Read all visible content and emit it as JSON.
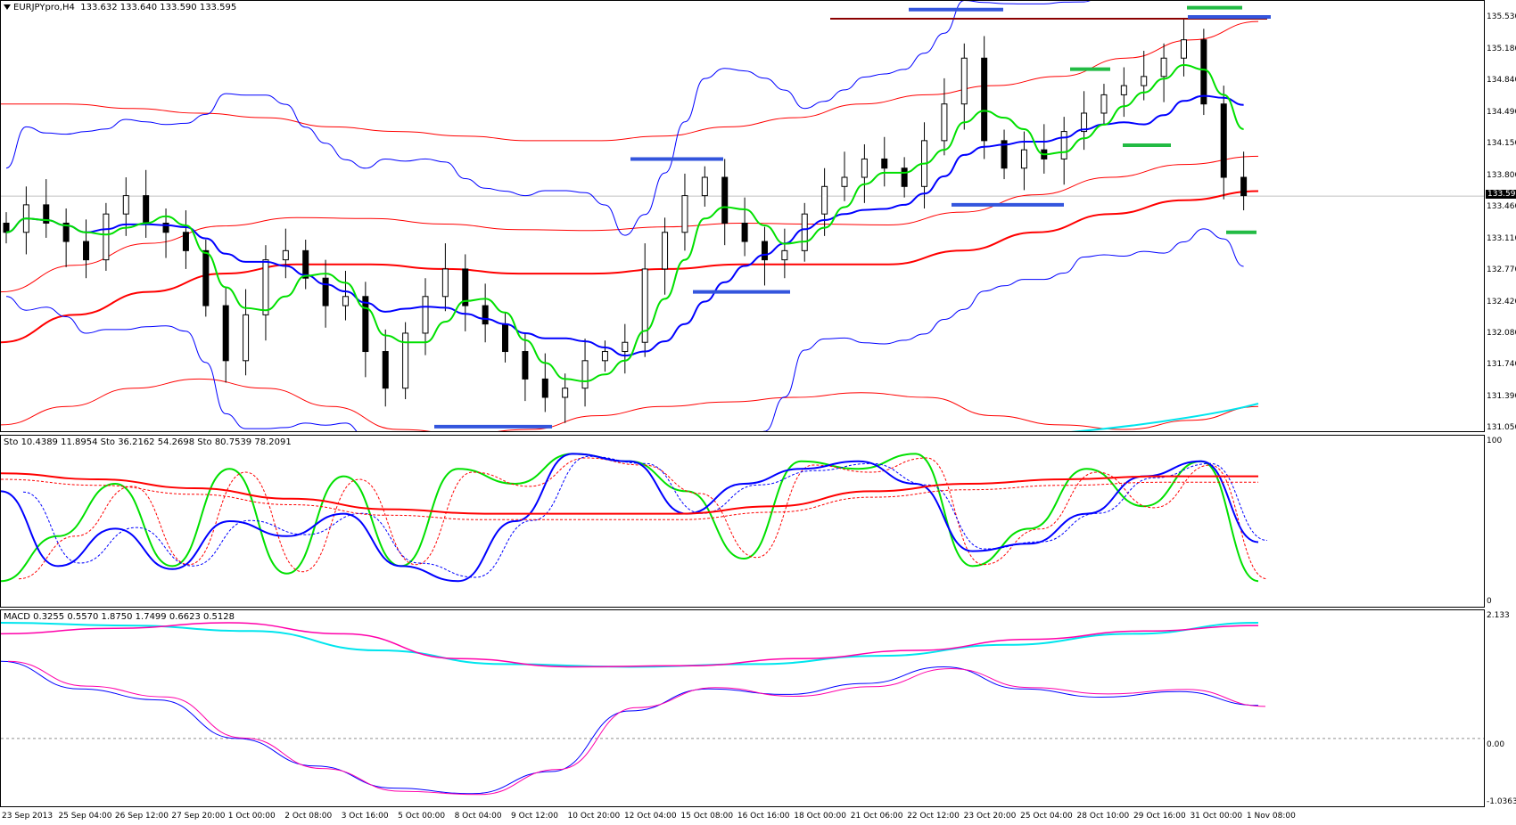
{
  "main": {
    "symbol": "EURJPYpro,H4",
    "ohlc": "133.632 133.640 133.590 133.595",
    "current_price": "133.595",
    "price_axis": [
      "135.530",
      "135.180",
      "134.840",
      "134.490",
      "134.150",
      "133.800",
      "133.460",
      "133.110",
      "132.770",
      "132.420",
      "132.080",
      "131.740",
      "131.390",
      "131.050"
    ]
  },
  "sto": {
    "title": "Sto 10.4389 11.8954  Sto 36.2162 54.2698  Sto 80.7539 78.2091",
    "axis": [
      "100",
      "0"
    ]
  },
  "macd": {
    "title": "MACD 0.3255 0.5570 1.8750 1.7499 0.6623 0.5128",
    "axis": [
      "2.133",
      "0.00",
      "-1.0363"
    ]
  },
  "time_axis": [
    "23 Sep 2013",
    "25 Sep 04:00",
    "26 Sep 12:00",
    "27 Sep 20:00",
    "1 Oct 00:00",
    "2 Oct 08:00",
    "3 Oct 16:00",
    "5 Oct 00:00",
    "8 Oct 04:00",
    "9 Oct 12:00",
    "10 Oct 20:00",
    "12 Oct 04:00",
    "15 Oct 08:00",
    "16 Oct 16:00",
    "18 Oct 00:00",
    "21 Oct 06:00",
    "22 Oct 12:00",
    "23 Oct 20:00",
    "25 Oct 04:00",
    "28 Oct 10:00",
    "29 Oct 16:00",
    "31 Oct 00:00",
    "1 Nov 08:00"
  ],
  "colors": {
    "blue": "#0000ff",
    "red": "#ff0000",
    "green": "#00e000",
    "darkred": "#8b0000",
    "cyan": "#00e5ee",
    "magenta": "#ff00aa",
    "levels": "#3355dd",
    "support": "#22bb44"
  },
  "icons": {
    "dropdown": "triangle-down-icon"
  },
  "chart_data": {
    "type": "candlestick",
    "price_range": [
      131.05,
      135.53
    ],
    "close": [
      133.2,
      133.5,
      133.3,
      133.1,
      132.9,
      133.4,
      133.6,
      133.3,
      133.2,
      133.0,
      132.4,
      131.8,
      132.3,
      132.9,
      133.0,
      132.7,
      132.4,
      132.5,
      131.9,
      131.5,
      132.1,
      132.5,
      132.8,
      132.4,
      132.2,
      131.9,
      131.6,
      131.4,
      131.5,
      131.8,
      131.9,
      132.0,
      132.8,
      133.2,
      133.6,
      133.8,
      133.3,
      133.1,
      132.9,
      133.0,
      133.4,
      133.7,
      133.8,
      134.0,
      133.9,
      133.7,
      134.2,
      134.6,
      135.1,
      134.2,
      133.9,
      134.1,
      134.0,
      134.3,
      134.5,
      134.7,
      134.8,
      134.9,
      135.1,
      135.3,
      134.6,
      133.8,
      133.6
    ],
    "upper_band_red": [
      134.6,
      134.6,
      134.55,
      134.5,
      134.45,
      134.35,
      134.3,
      134.25,
      134.2,
      134.2,
      134.25,
      134.35,
      134.45,
      134.6,
      134.7,
      134.8,
      134.9,
      135.1,
      135.3,
      135.5
    ],
    "lower_band_red": [
      131.1,
      131.3,
      131.5,
      131.6,
      131.5,
      131.3,
      131.05,
      131.0,
      131.05,
      131.2,
      131.3,
      131.35,
      131.4,
      131.45,
      131.4,
      131.2,
      131.1,
      131.05,
      131.15,
      131.3
    ],
    "sma_red_thick": [
      132.0,
      132.3,
      132.55,
      132.75,
      132.85,
      132.85,
      132.8,
      132.75,
      132.75,
      132.8,
      132.85,
      132.85,
      132.85,
      133.0,
      133.2,
      133.4,
      133.55,
      133.65
    ],
    "resistance_line": 135.53,
    "stochastic": {
      "fast": [
        10,
        40,
        75,
        20,
        85,
        15,
        80,
        20,
        85,
        75,
        95,
        90,
        70,
        25,
        90,
        85,
        95,
        20,
        45,
        85,
        60,
        90,
        10
      ],
      "mid": [
        70,
        20,
        45,
        18,
        50,
        40,
        55,
        20,
        10,
        50,
        95,
        90,
        55,
        75,
        85,
        90,
        75,
        30,
        35,
        55,
        80,
        90,
        36
      ],
      "slow": [
        82,
        78,
        72,
        65,
        58,
        55,
        55,
        55,
        60,
        70,
        75,
        78,
        80,
        80
      ]
    },
    "macd": {
      "main": [
        1.4,
        0.9,
        0.7,
        0.0,
        -0.5,
        -0.9,
        -1.0,
        -0.6,
        0.5,
        0.9,
        0.8,
        1.0,
        1.3,
        0.9,
        0.75,
        0.85,
        0.6
      ],
      "signal": [
        1.9,
        2.0,
        2.1,
        1.9,
        1.45,
        1.3,
        1.32,
        1.45,
        1.6,
        1.8,
        1.95,
        2.05
      ],
      "histogram_smooth": [
        2.1,
        2.05,
        1.95,
        1.6,
        1.35,
        1.3,
        1.35,
        1.5,
        1.7,
        1.9,
        2.1
      ]
    }
  }
}
